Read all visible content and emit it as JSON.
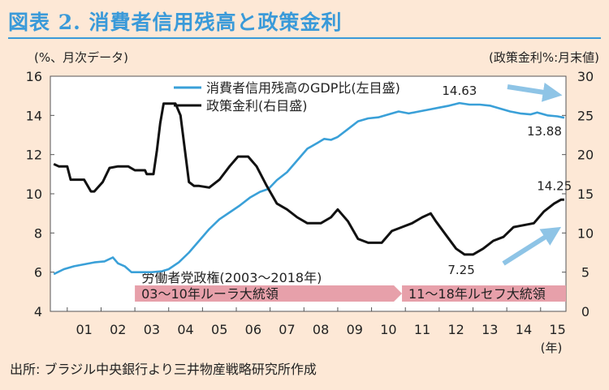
{
  "header": {
    "title": "図表 2. 消費者信用残高と政策金利",
    "unit_left": "(%、月次データ)",
    "unit_right": "(政策金利%:月末値)"
  },
  "footer": {
    "source": "出所:  ブラジル中央銀行より三井物産戦略研究所作成"
  },
  "colors": {
    "title": "#3a9ad9",
    "background": "#fde8d6",
    "series_credit": "#3aa0d8",
    "series_rate": "#111111",
    "arrow": "#8ec4e6",
    "band": "#e7a0aa"
  },
  "chart_data": {
    "type": "line",
    "x_tick_labels": [
      "01",
      "02",
      "03",
      "04",
      "05",
      "06",
      "07",
      "08",
      "09",
      "10",
      "11",
      "12",
      "13",
      "14",
      "15"
    ],
    "x_unit_label": "(年)",
    "y_left_ticks": [
      "4",
      "6",
      "8",
      "10",
      "12",
      "14",
      "16"
    ],
    "y_right_ticks": [
      "0",
      "5",
      "10",
      "15",
      "20",
      "25",
      "30"
    ],
    "y_left_range": [
      4,
      16
    ],
    "y_right_range": [
      0,
      30
    ],
    "x_range": [
      2000.5,
      2015.75
    ],
    "grid": false,
    "legend": {
      "position": "top-center",
      "items": [
        {
          "label": "消費者信用残高のGDP比(左目盛)",
          "color": "#3aa0d8"
        },
        {
          "label": "政策金利(右目盛)",
          "color": "#111111"
        }
      ]
    },
    "series": [
      {
        "name": "消費者信用残高のGDP比(左目盛)",
        "axis": "left",
        "points": [
          [
            2000.6,
            5.9
          ],
          [
            2000.9,
            6.15
          ],
          [
            2001.2,
            6.3
          ],
          [
            2001.5,
            6.4
          ],
          [
            2001.8,
            6.5
          ],
          [
            2002.1,
            6.55
          ],
          [
            2002.35,
            6.75
          ],
          [
            2002.5,
            6.45
          ],
          [
            2002.7,
            6.3
          ],
          [
            2002.9,
            6.0
          ],
          [
            2003.2,
            6.0
          ],
          [
            2003.5,
            6.0
          ],
          [
            2003.8,
            6.05
          ],
          [
            2004.0,
            6.15
          ],
          [
            2004.3,
            6.5
          ],
          [
            2004.6,
            7.0
          ],
          [
            2004.9,
            7.6
          ],
          [
            2005.2,
            8.2
          ],
          [
            2005.5,
            8.7
          ],
          [
            2005.8,
            9.05
          ],
          [
            2006.1,
            9.4
          ],
          [
            2006.4,
            9.8
          ],
          [
            2006.7,
            10.1
          ],
          [
            2006.95,
            10.25
          ],
          [
            2007.2,
            10.7
          ],
          [
            2007.5,
            11.1
          ],
          [
            2007.8,
            11.7
          ],
          [
            2008.1,
            12.3
          ],
          [
            2008.4,
            12.6
          ],
          [
            2008.6,
            12.8
          ],
          [
            2008.8,
            12.75
          ],
          [
            2009.0,
            12.9
          ],
          [
            2009.3,
            13.3
          ],
          [
            2009.6,
            13.7
          ],
          [
            2009.9,
            13.85
          ],
          [
            2010.2,
            13.9
          ],
          [
            2010.5,
            14.05
          ],
          [
            2010.8,
            14.2
          ],
          [
            2011.1,
            14.1
          ],
          [
            2011.4,
            14.2
          ],
          [
            2011.7,
            14.3
          ],
          [
            2012.0,
            14.4
          ],
          [
            2012.3,
            14.5
          ],
          [
            2012.6,
            14.63
          ],
          [
            2012.9,
            14.55
          ],
          [
            2013.2,
            14.55
          ],
          [
            2013.5,
            14.5
          ],
          [
            2013.8,
            14.35
          ],
          [
            2014.1,
            14.2
          ],
          [
            2014.4,
            14.1
          ],
          [
            2014.7,
            14.05
          ],
          [
            2014.9,
            14.15
          ],
          [
            2015.2,
            14.0
          ],
          [
            2015.5,
            13.95
          ],
          [
            2015.7,
            13.88
          ]
        ],
        "annotations": [
          {
            "text": "14.63",
            "x": 2012.6,
            "y": 14.63
          },
          {
            "text": "13.88",
            "x": 2015.7,
            "y": 13.88
          }
        ]
      },
      {
        "name": "政策金利(右目盛)",
        "axis": "right",
        "points": [
          [
            2000.6,
            18.8
          ],
          [
            2000.75,
            18.5
          ],
          [
            2001.0,
            18.5
          ],
          [
            2001.1,
            16.8
          ],
          [
            2001.5,
            16.8
          ],
          [
            2001.7,
            15.3
          ],
          [
            2001.8,
            15.3
          ],
          [
            2002.05,
            16.5
          ],
          [
            2002.25,
            18.3
          ],
          [
            2002.5,
            18.5
          ],
          [
            2002.8,
            18.5
          ],
          [
            2003.0,
            18.0
          ],
          [
            2003.15,
            18.0
          ],
          [
            2003.3,
            18.0
          ],
          [
            2003.35,
            17.5
          ],
          [
            2003.55,
            17.5
          ],
          [
            2003.65,
            20.5
          ],
          [
            2003.75,
            24.0
          ],
          [
            2003.85,
            26.5
          ],
          [
            2004.0,
            26.5
          ],
          [
            2004.2,
            26.5
          ],
          [
            2004.35,
            25.0
          ],
          [
            2004.6,
            16.5
          ],
          [
            2004.75,
            16.0
          ],
          [
            2004.9,
            16.0
          ],
          [
            2005.2,
            15.8
          ],
          [
            2005.5,
            16.8
          ],
          [
            2005.8,
            18.5
          ],
          [
            2006.05,
            19.75
          ],
          [
            2006.35,
            19.75
          ],
          [
            2006.6,
            18.5
          ],
          [
            2006.9,
            16.0
          ],
          [
            2007.2,
            13.75
          ],
          [
            2007.5,
            13.0
          ],
          [
            2007.8,
            12.0
          ],
          [
            2008.1,
            11.25
          ],
          [
            2008.5,
            11.25
          ],
          [
            2008.8,
            12.0
          ],
          [
            2009.0,
            13.0
          ],
          [
            2009.3,
            11.5
          ],
          [
            2009.6,
            9.25
          ],
          [
            2009.9,
            8.75
          ],
          [
            2010.3,
            8.75
          ],
          [
            2010.6,
            10.25
          ],
          [
            2010.9,
            10.75
          ],
          [
            2011.2,
            11.25
          ],
          [
            2011.5,
            12.0
          ],
          [
            2011.75,
            12.5
          ],
          [
            2011.9,
            11.5
          ],
          [
            2012.2,
            9.75
          ],
          [
            2012.5,
            8.0
          ],
          [
            2012.75,
            7.25
          ],
          [
            2013.0,
            7.25
          ],
          [
            2013.3,
            8.0
          ],
          [
            2013.6,
            9.0
          ],
          [
            2013.9,
            9.5
          ],
          [
            2014.2,
            10.75
          ],
          [
            2014.5,
            11.0
          ],
          [
            2014.8,
            11.25
          ],
          [
            2015.1,
            12.75
          ],
          [
            2015.4,
            13.75
          ],
          [
            2015.6,
            14.25
          ],
          [
            2015.7,
            14.25
          ]
        ],
        "annotations": [
          {
            "text": "14.25",
            "x": 2015.6,
            "y": 14.25
          },
          {
            "text": "7.25",
            "x": 2012.75,
            "y": 7.25
          }
        ]
      }
    ],
    "band_title": "労働者党政権(2003〜2018年)",
    "periods": [
      {
        "label": "03〜10年ルーラ大統領",
        "start": 2003.0,
        "end": 2010.9
      },
      {
        "label": "11〜18年ルセフ大統領",
        "start": 2010.9,
        "end": 2015.75
      }
    ]
  }
}
